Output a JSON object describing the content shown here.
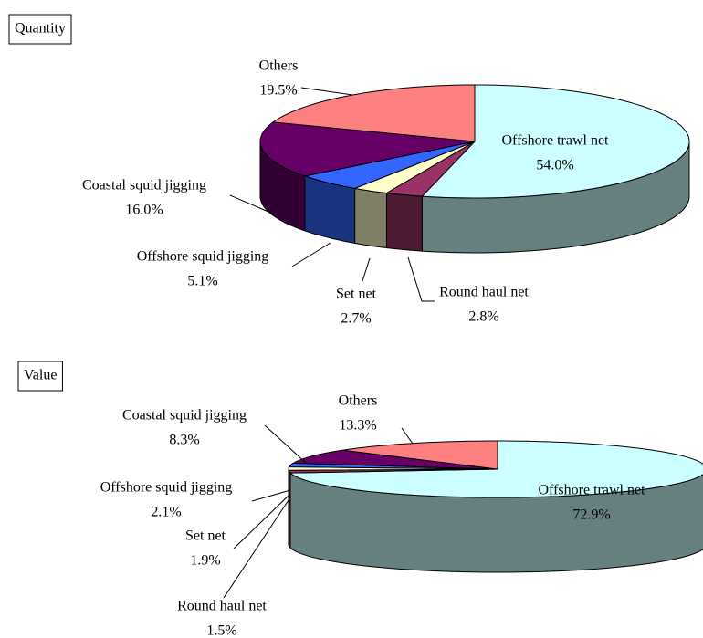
{
  "chart_data": [
    {
      "type": "pie3d",
      "title": "Quantity",
      "categories": [
        "Offshore trawl net",
        "Round haul net",
        "Set net",
        "Offshore squid jigging",
        "Coastal squid jigging",
        "Others"
      ],
      "values": [
        54.0,
        2.8,
        2.7,
        5.1,
        16.0,
        19.5
      ],
      "value_labels": [
        "54.0%",
        "2.8%",
        "2.7%",
        "5.1%",
        "16.0%",
        "19.5%"
      ],
      "colors": [
        "#ccffff",
        "#993366",
        "#ffffcc",
        "#3366ff",
        "#660066",
        "#ff8080"
      ]
    },
    {
      "type": "pie3d",
      "title": "Value",
      "categories": [
        "Offshore trawl net",
        "Round haul net",
        "Set net",
        "Offshore squid jigging",
        "Coastal squid jigging",
        "Others"
      ],
      "values": [
        72.9,
        1.5,
        1.9,
        2.1,
        8.3,
        13.3
      ],
      "value_labels": [
        "72.9%",
        "1.5%",
        "1.9%",
        "2.1%",
        "8.3%",
        "13.3%"
      ],
      "colors": [
        "#ccffff",
        "#993366",
        "#ffffcc",
        "#3366ff",
        "#660066",
        "#ff8080"
      ]
    }
  ]
}
